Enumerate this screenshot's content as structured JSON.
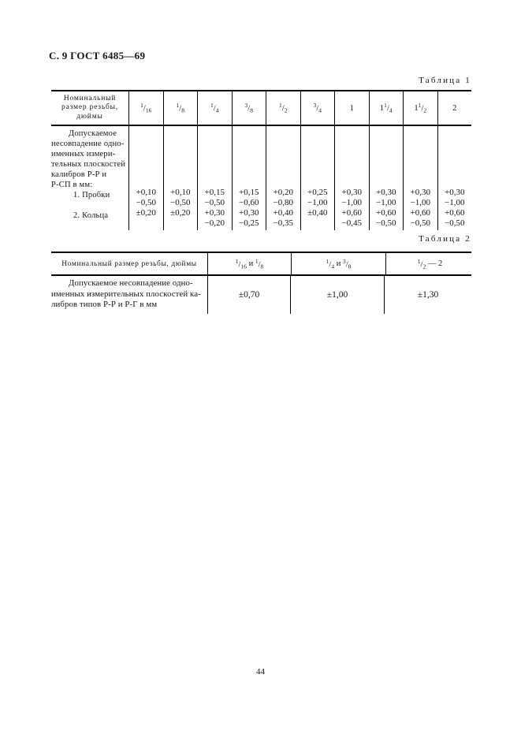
{
  "page": {
    "header": "С. 9 ГОСТ 6485—69",
    "page_number": "44"
  },
  "table1": {
    "caption": "Таблица 1",
    "header": {
      "size_label_lines": [
        "Номинальный",
        "размер резьбы,",
        "дюймы"
      ],
      "size_columns": [
        {
          "tokens": [
            {
              "f": "1/16"
            }
          ]
        },
        {
          "tokens": [
            {
              "f": "1/8"
            }
          ]
        },
        {
          "tokens": [
            {
              "f": "1/4"
            }
          ]
        },
        {
          "tokens": [
            {
              "f": "3/8"
            }
          ]
        },
        {
          "tokens": [
            {
              "f": "1/2"
            }
          ]
        },
        {
          "tokens": [
            {
              "f": "3/4"
            }
          ]
        },
        {
          "tokens": [
            {
              "t": "1"
            }
          ]
        },
        {
          "tokens": [
            {
              "t": "1"
            },
            {
              "f": "1/4"
            }
          ]
        },
        {
          "tokens": [
            {
              "t": "1"
            },
            {
              "f": "1/2"
            }
          ]
        },
        {
          "tokens": [
            {
              "t": "2"
            }
          ]
        }
      ]
    },
    "body": {
      "label_intro_lines": [
        "Допускаемое",
        "несовпадение одно-",
        "именных измери-",
        "тельных плоскостей",
        "калибров Р-Р и",
        "Р-СП в мм:"
      ],
      "label_item_lines": [
        "1. Пробки",
        "",
        "2. Кольца",
        ""
      ],
      "values": [
        [
          "+0,10",
          "−0,50",
          "±0,20",
          ""
        ],
        [
          "+0,10",
          "−0,50",
          "±0,20",
          ""
        ],
        [
          "+0,15",
          "−0,50",
          "+0,30",
          "−0,20"
        ],
        [
          "+0,15",
          "−0,60",
          "+0,30",
          "−0,25"
        ],
        [
          "+0,20",
          "−0,80",
          "+0,40",
          "−0,35"
        ],
        [
          "+0,25",
          "−1,00",
          "±0,40",
          ""
        ],
        [
          "+0,30",
          "−1,00",
          "+0,60",
          "−0,45"
        ],
        [
          "+0,30",
          "−1,00",
          "+0,60",
          "−0,50"
        ],
        [
          "+0,30",
          "−1,00",
          "+0,60",
          "−0,50"
        ],
        [
          "+0,30",
          "−1,00",
          "+0,60",
          "−0,50"
        ]
      ]
    }
  },
  "table2": {
    "caption": "Таблица 2",
    "header": {
      "size_label": "Номинальный размер резьбы, дюймы",
      "size_columns": [
        {
          "tokens": [
            {
              "f": "1/16"
            },
            {
              "t": " и "
            },
            {
              "f": "1/8"
            }
          ]
        },
        {
          "tokens": [
            {
              "f": "1/4"
            },
            {
              "t": " и "
            },
            {
              "f": "3/8"
            }
          ]
        },
        {
          "tokens": [
            {
              "f": "1/2"
            },
            {
              "t": " — 2"
            }
          ]
        }
      ]
    },
    "body": {
      "label_lines": [
        "Допускаемое несовпадение одно-",
        "именных измерительных плоскостей ка-",
        "либров типов Р-Р и Р-Г в мм"
      ],
      "values": [
        "±0,70",
        "±1,00",
        "±1,30"
      ]
    }
  }
}
